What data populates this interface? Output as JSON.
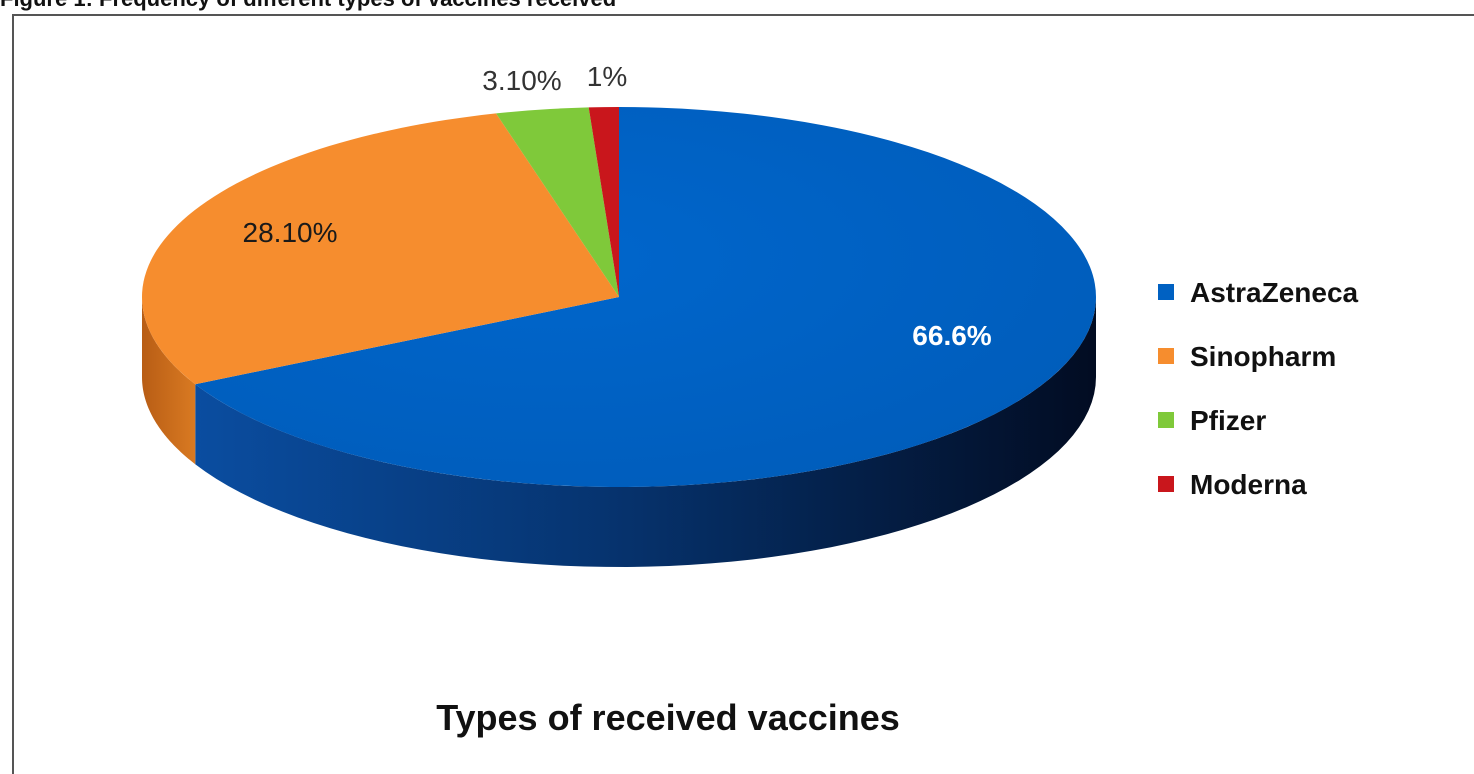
{
  "figure_caption": "Figure 1: Frequency of different types of vaccines received",
  "chart_data": {
    "type": "pie",
    "style": "3d",
    "title": "Types of received vaccines",
    "legend_position": "right",
    "slices": [
      {
        "name": "AstraZeneca",
        "value": 66.6,
        "label": "66.6%",
        "color": "#0061c2"
      },
      {
        "name": "Sinopharm",
        "value": 28.1,
        "label": "28.10%",
        "color": "#f68d2e"
      },
      {
        "name": "Pfizer",
        "value": 3.1,
        "label": "3.10%",
        "color": "#7fc93a"
      },
      {
        "name": "Moderna",
        "value": 1.0,
        "label": "1%",
        "color": "#c9161c"
      }
    ]
  }
}
